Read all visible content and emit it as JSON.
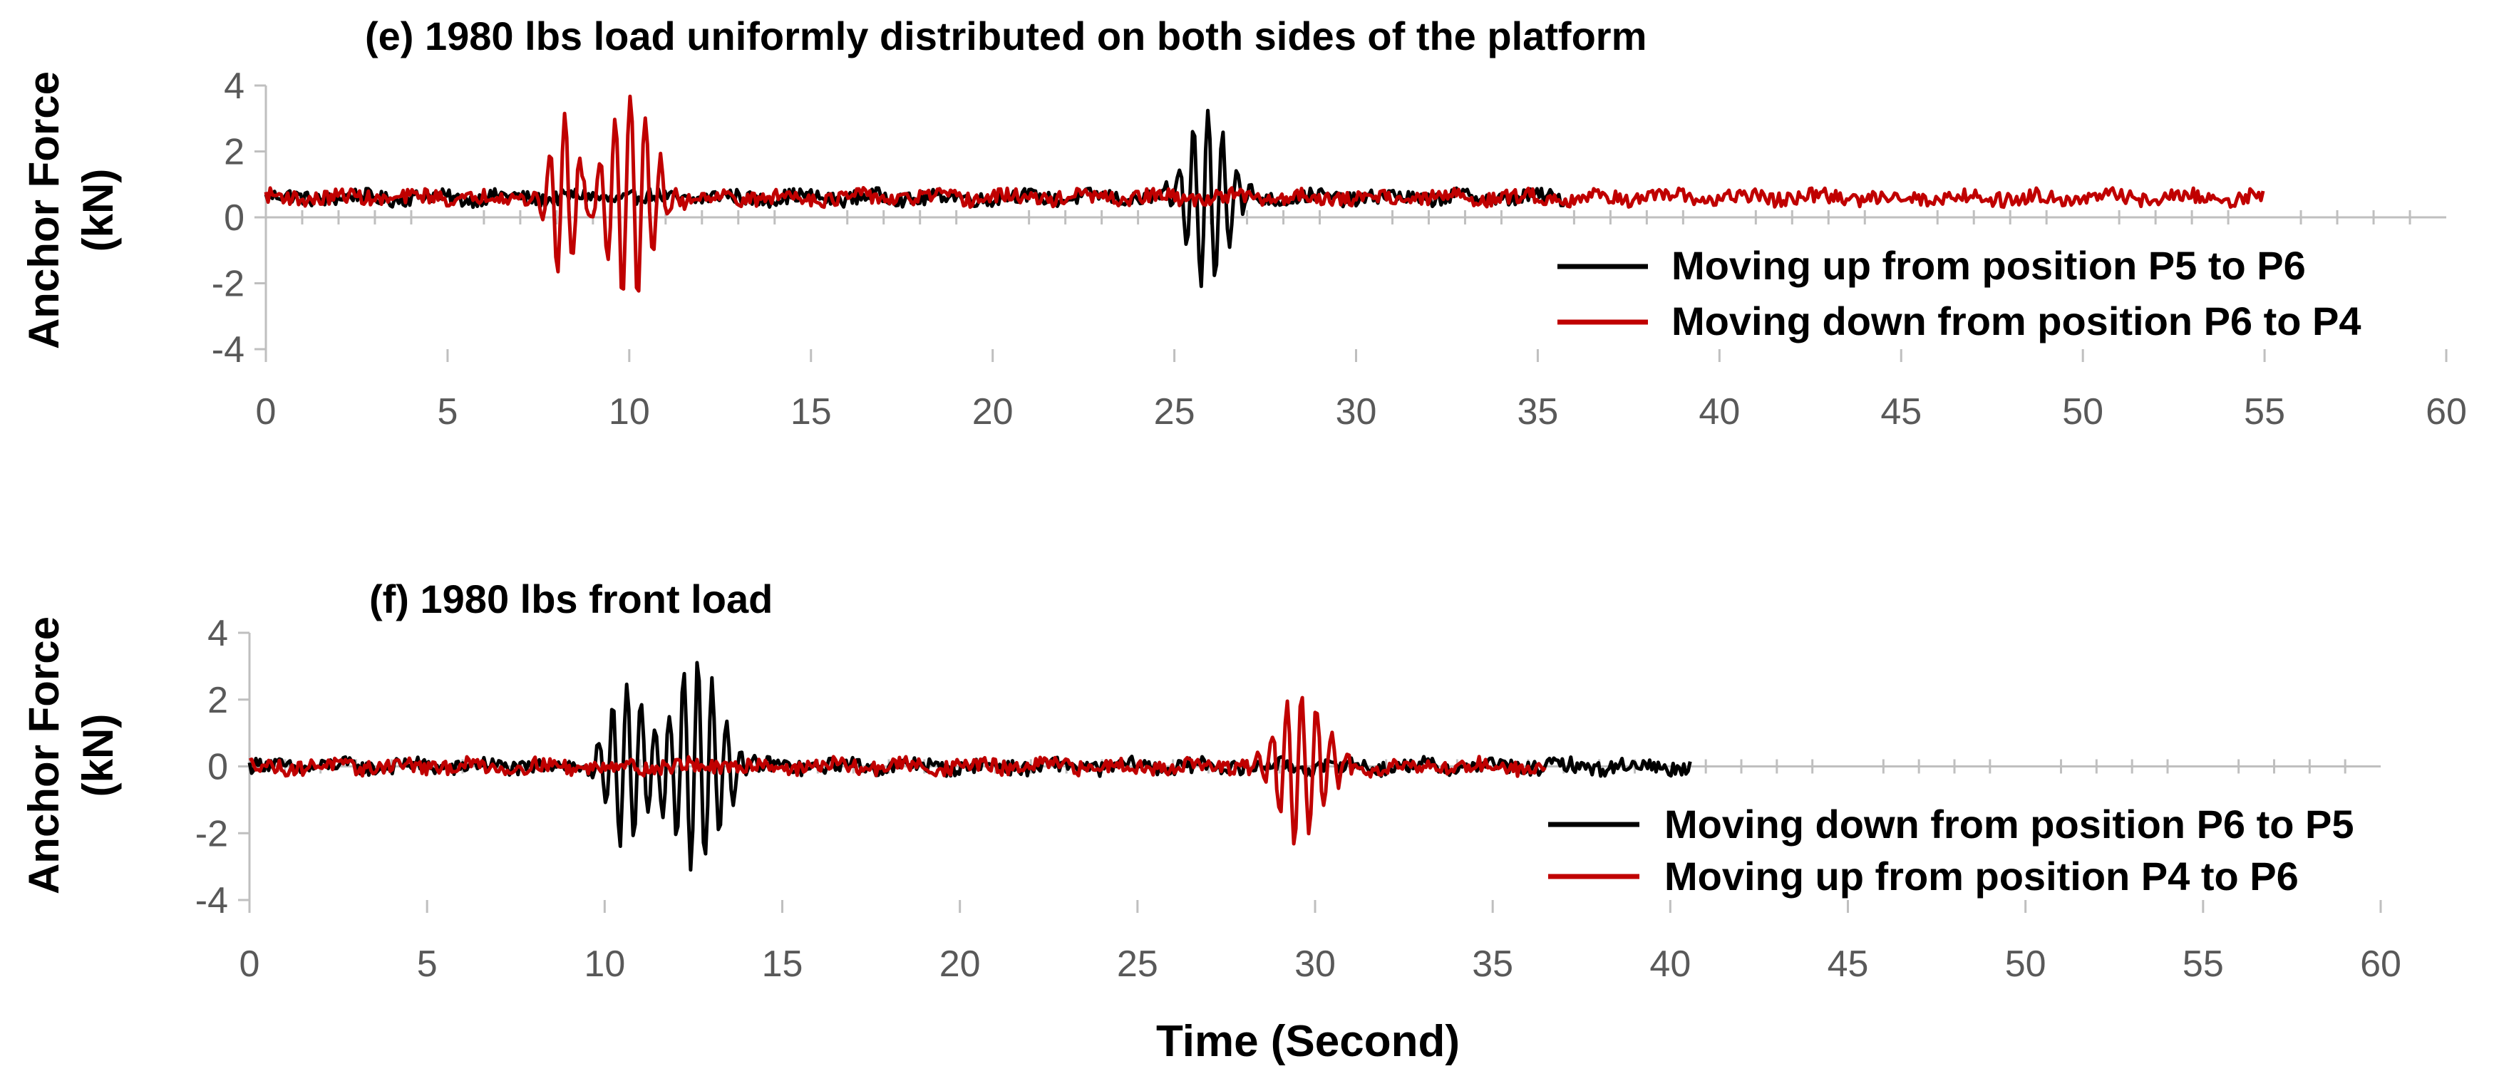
{
  "figure": {
    "xlabel": "Time (Second)"
  },
  "colors": {
    "black_series": "#000000",
    "red_series": "#C00000",
    "axis": "#BFBFBF",
    "tick_text": "#595959"
  },
  "chart_data": [
    {
      "type": "line",
      "title": "(e) 1980 lbs load uniformly distributed on both sides of the platform",
      "ylabel_line1": "Anchor Force",
      "ylabel_line2": "(kN)",
      "xlabel": "",
      "xlim": [
        0,
        60
      ],
      "ylim": [
        -4,
        4
      ],
      "xticks": [
        0,
        5,
        10,
        15,
        20,
        25,
        30,
        35,
        40,
        45,
        50,
        55,
        60
      ],
      "yticks": [
        4,
        2,
        0,
        -2,
        -4
      ],
      "grid": false,
      "legend_position": "right",
      "series": [
        {
          "name": "Moving up from position P5 to P6",
          "color": "#000000",
          "baseline": 0.6,
          "noise": 0.22,
          "t_end": 35.8,
          "bursts": [
            {
              "center": 25.9,
              "amp": 2.7,
              "period": 0.4,
              "width": 0.75
            }
          ]
        },
        {
          "name": "Moving down from position P6 to P4",
          "color": "#C00000",
          "baseline": 0.6,
          "noise": 0.22,
          "t_end": 55.0,
          "bursts": [
            {
              "center": 8.2,
              "amp": 2.6,
              "period": 0.42,
              "width": 0.5
            },
            {
              "center": 10.0,
              "amp": 3.2,
              "period": 0.42,
              "width": 0.85
            }
          ]
        }
      ]
    },
    {
      "type": "line",
      "title": "(f) 1980 lbs front load",
      "ylabel_line1": "Anchor Force",
      "ylabel_line2": "(kN)",
      "xlabel": "Time (Second)",
      "xlim": [
        0,
        60
      ],
      "ylim": [
        -4,
        4
      ],
      "xticks": [
        0,
        5,
        10,
        15,
        20,
        25,
        30,
        35,
        40,
        45,
        50,
        55,
        60
      ],
      "yticks": [
        4,
        2,
        0,
        -2,
        -4
      ],
      "grid": false,
      "legend_position": "right",
      "series": [
        {
          "name": "Moving down from position P6 to P5",
          "color": "#000000",
          "baseline": 0.0,
          "noise": 0.22,
          "t_end": 40.6,
          "bursts": [
            {
              "center": 10.6,
              "amp": 2.5,
              "period": 0.4,
              "width": 0.7
            },
            {
              "center": 12.6,
              "amp": 3.2,
              "period": 0.4,
              "width": 0.9
            }
          ]
        },
        {
          "name": "Moving up from position P4 to P6",
          "color": "#C00000",
          "baseline": 0.0,
          "noise": 0.22,
          "t_end": 36.5,
          "bursts": [
            {
              "center": 29.6,
              "amp": 2.2,
              "period": 0.42,
              "width": 0.9
            }
          ]
        }
      ]
    }
  ]
}
